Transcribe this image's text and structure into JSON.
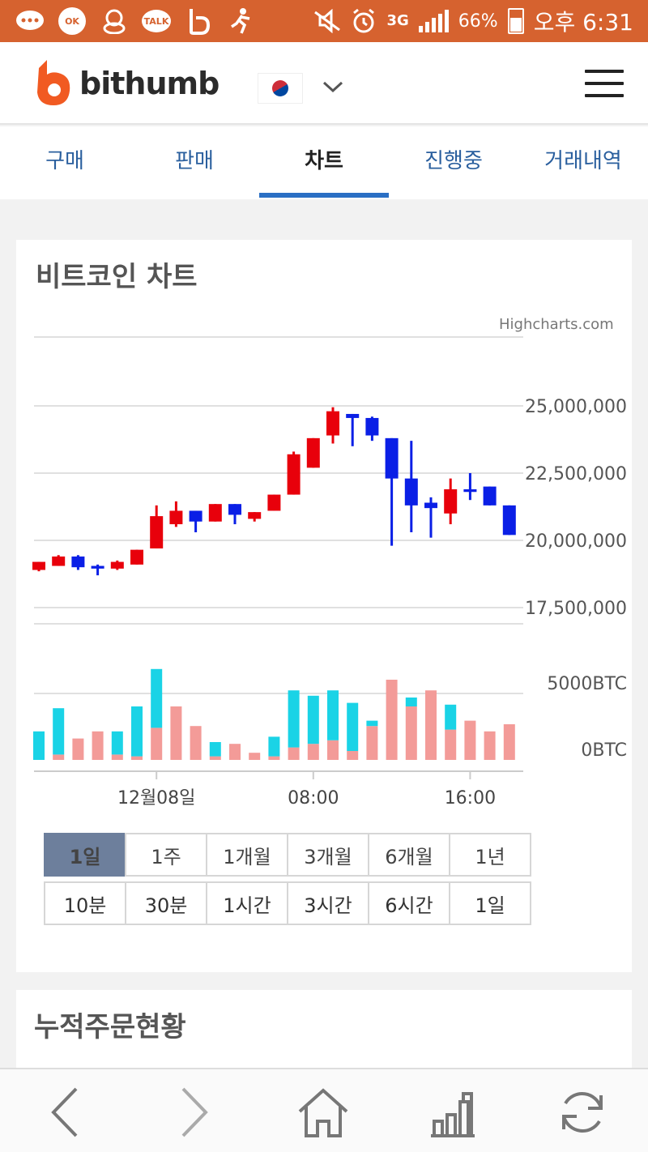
{
  "status_bar": {
    "notif_icons": [
      "chat-icon",
      "ok-cashbag-icon",
      "duck-icon",
      "kakaotalk-icon",
      "band-icon",
      "runner-icon"
    ],
    "talk_label": "TALK",
    "ok_label": "OK",
    "network": "3G",
    "battery": "66%",
    "time": "오후 6:31"
  },
  "header": {
    "brand": "bithumb",
    "country_flag": "korea-flag-icon",
    "menu_icon": "hamburger-menu-icon"
  },
  "tabs": [
    {
      "label": "구매"
    },
    {
      "label": "판매"
    },
    {
      "label": "차트",
      "active": true
    },
    {
      "label": "진행중"
    },
    {
      "label": "거래내역"
    }
  ],
  "chart_card": {
    "title": "비트코인 차트",
    "credit": "Highcharts.com"
  },
  "chart_data": {
    "type": "candlestick",
    "x_tick_labels": [
      "12월08일",
      "08:00",
      "16:00"
    ],
    "price_axis": {
      "labels": [
        "25,000,000",
        "22,500,000",
        "20,000,000",
        "17,500,000"
      ],
      "ylim": [
        17500000,
        25000000
      ]
    },
    "volume_axis": {
      "labels": [
        "5000BTC",
        "0BTC"
      ]
    },
    "up_color": "#e8000b",
    "down_color": "#0a1fe6",
    "volume_up_color": "#f39b98",
    "volume_down_color": "#1ad3e6",
    "candles": [
      {
        "o": 18900000,
        "h": 19200000,
        "l": 18850000,
        "c": 19200000
      },
      {
        "o": 19050000,
        "h": 19450000,
        "l": 19050000,
        "c": 19400000
      },
      {
        "o": 19400000,
        "h": 19450000,
        "l": 18900000,
        "c": 19000000
      },
      {
        "o": 19050000,
        "h": 19100000,
        "l": 18700000,
        "c": 18950000
      },
      {
        "o": 18950000,
        "h": 19250000,
        "l": 18900000,
        "c": 19200000
      },
      {
        "o": 19100000,
        "h": 19650000,
        "l": 19100000,
        "c": 19650000
      },
      {
        "o": 19700000,
        "h": 21300000,
        "l": 19700000,
        "c": 20900000
      },
      {
        "o": 20600000,
        "h": 21450000,
        "l": 20500000,
        "c": 21100000
      },
      {
        "o": 21100000,
        "h": 21100000,
        "l": 20300000,
        "c": 20700000
      },
      {
        "o": 20700000,
        "h": 21350000,
        "l": 20700000,
        "c": 21350000
      },
      {
        "o": 21350000,
        "h": 21350000,
        "l": 20600000,
        "c": 20950000
      },
      {
        "o": 20800000,
        "h": 21050000,
        "l": 20700000,
        "c": 21050000
      },
      {
        "o": 21100000,
        "h": 21700000,
        "l": 21100000,
        "c": 21700000
      },
      {
        "o": 21700000,
        "h": 23300000,
        "l": 21700000,
        "c": 23200000
      },
      {
        "o": 22700000,
        "h": 23800000,
        "l": 22700000,
        "c": 23800000
      },
      {
        "o": 23900000,
        "h": 24950000,
        "l": 23600000,
        "c": 24800000
      },
      {
        "o": 24700000,
        "h": 24700000,
        "l": 23500000,
        "c": 24550000
      },
      {
        "o": 24550000,
        "h": 24600000,
        "l": 23700000,
        "c": 23900000
      },
      {
        "o": 23800000,
        "h": 23800000,
        "l": 19800000,
        "c": 22300000
      },
      {
        "o": 22300000,
        "h": 23700000,
        "l": 20300000,
        "c": 21300000
      },
      {
        "o": 21400000,
        "h": 21600000,
        "l": 20100000,
        "c": 21200000
      },
      {
        "o": 21000000,
        "h": 22300000,
        "l": 20600000,
        "c": 21900000
      },
      {
        "o": 21900000,
        "h": 22500000,
        "l": 21500000,
        "c": 21800000
      },
      {
        "o": 22000000,
        "h": 22000000,
        "l": 21300000,
        "c": 21300000
      },
      {
        "o": 21300000,
        "h": 21300000,
        "l": 20200000,
        "c": 20200000
      }
    ],
    "volumes": [
      {
        "up": 0,
        "down": 1600
      },
      {
        "up": 300,
        "down": 2600
      },
      {
        "up": 1200,
        "down": 0
      },
      {
        "up": 1600,
        "down": 0
      },
      {
        "up": 300,
        "down": 1300
      },
      {
        "up": 200,
        "down": 2800
      },
      {
        "up": 1800,
        "down": 3300
      },
      {
        "up": 3000,
        "down": 0
      },
      {
        "up": 1900,
        "down": 0
      },
      {
        "up": 200,
        "down": 800
      },
      {
        "up": 900,
        "down": 0
      },
      {
        "up": 400,
        "down": 0
      },
      {
        "up": 200,
        "down": 1100
      },
      {
        "up": 700,
        "down": 3200
      },
      {
        "up": 900,
        "down": 2700
      },
      {
        "up": 1100,
        "down": 2800
      },
      {
        "up": 500,
        "down": 2700
      },
      {
        "up": 1900,
        "down": 300
      },
      {
        "up": 4500,
        "down": 0
      },
      {
        "up": 3000,
        "down": 500
      },
      {
        "up": 3900,
        "down": 0
      },
      {
        "up": 1700,
        "down": 1400
      },
      {
        "up": 2200,
        "down": 0
      },
      {
        "up": 1600,
        "down": 0
      },
      {
        "up": 2000,
        "down": 0
      }
    ]
  },
  "period_buttons": {
    "range": [
      "1일",
      "1주",
      "1개월",
      "3개월",
      "6개월",
      "1년"
    ],
    "selected_range": "1일",
    "interval": [
      "10분",
      "30분",
      "1시간",
      "3시간",
      "6시간",
      "1일"
    ]
  },
  "order_card": {
    "title": "누적주문현황"
  },
  "bottom_nav": {
    "icons": [
      "back-icon",
      "forward-icon",
      "home-icon",
      "chart-bars-icon",
      "refresh-icon"
    ]
  }
}
